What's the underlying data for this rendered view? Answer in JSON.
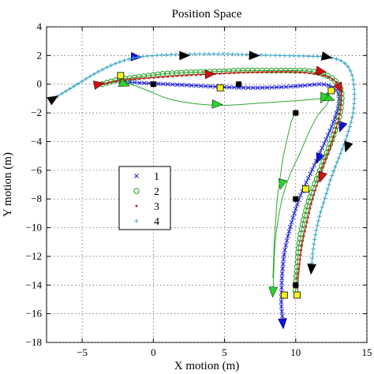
{
  "chart_data": {
    "type": "line",
    "title": "Position Space",
    "xlabel": "X motion (m)",
    "ylabel": "Y motion (m)",
    "xlim": [
      -7.5,
      15
    ],
    "ylim": [
      -18,
      4
    ],
    "xticks": [
      -5,
      0,
      5,
      10,
      15
    ],
    "yticks": [
      4,
      2,
      0,
      -2,
      -4,
      -6,
      -8,
      -10,
      -12,
      -14,
      -16,
      -18
    ],
    "grid": "dotted",
    "legend_position": "left-middle",
    "series": [
      {
        "name": "1",
        "marker": "x",
        "color": "#1f1fd6",
        "points": [
          [
            -2.3,
            0.2
          ],
          [
            -1,
            0.1
          ],
          [
            1,
            0
          ],
          [
            3,
            -0.1
          ],
          [
            5,
            -0.2
          ],
          [
            7,
            -0.25
          ],
          [
            9,
            -0.2
          ],
          [
            10.5,
            -0.1
          ],
          [
            11.8,
            0
          ],
          [
            12.6,
            -0.2
          ],
          [
            13,
            -0.7
          ],
          [
            13,
            -1.5
          ],
          [
            12.7,
            -2.5
          ],
          [
            12.2,
            -3.7
          ],
          [
            11.6,
            -5
          ],
          [
            11,
            -6.3
          ],
          [
            10.4,
            -7.6
          ],
          [
            9.9,
            -9
          ],
          [
            9.5,
            -10.4
          ],
          [
            9.2,
            -11.8
          ],
          [
            9.05,
            -13.2
          ],
          [
            9,
            -14.6
          ],
          [
            9,
            -15.5
          ],
          [
            9.1,
            -16.6
          ]
        ],
        "arrows": [
          [
            -1.2,
            1.9
          ],
          [
            13.2,
            -3.0
          ],
          [
            11.6,
            -5.2
          ],
          [
            9.1,
            -16.7
          ]
        ]
      },
      {
        "name": "2",
        "marker": "o",
        "color": "#1e9e1e",
        "points": [
          [
            -3.6,
            0
          ],
          [
            -2.5,
            0.3
          ],
          [
            -1,
            0.5
          ],
          [
            0.5,
            0.7
          ],
          [
            2,
            0.8
          ],
          [
            3.5,
            0.85
          ],
          [
            5,
            0.9
          ],
          [
            6.5,
            0.95
          ],
          [
            8,
            0.95
          ],
          [
            9.5,
            0.95
          ],
          [
            11,
            0.9
          ],
          [
            12.2,
            0.6
          ],
          [
            12.9,
            0.1
          ],
          [
            13.2,
            -0.5
          ],
          [
            13.2,
            -1.4
          ],
          [
            13,
            -2.5
          ],
          [
            12.6,
            -3.7
          ],
          [
            12.1,
            -5
          ],
          [
            11.6,
            -6.3
          ],
          [
            11.1,
            -7.6
          ],
          [
            10.7,
            -8.9
          ],
          [
            10.4,
            -10.2
          ],
          [
            10.2,
            -11.5
          ],
          [
            10.1,
            -12.8
          ],
          [
            10,
            -14
          ],
          [
            10,
            -14.6
          ]
        ]
      },
      {
        "name": "3",
        "marker": ".",
        "color": "#cc1f1f",
        "points": [
          [
            -3.6,
            0
          ],
          [
            -2,
            0.3
          ],
          [
            0,
            0.45
          ],
          [
            2,
            0.6
          ],
          [
            4,
            0.7
          ],
          [
            6,
            0.8
          ],
          [
            8,
            0.85
          ],
          [
            10,
            0.85
          ],
          [
            11.5,
            0.7
          ],
          [
            12.5,
            0.4
          ],
          [
            13.1,
            -0.2
          ],
          [
            13.2,
            -1
          ],
          [
            13.1,
            -2
          ],
          [
            12.8,
            -3.2
          ],
          [
            12.4,
            -4.5
          ],
          [
            11.9,
            -5.8
          ],
          [
            11.5,
            -7
          ],
          [
            11.1,
            -8.3
          ],
          [
            10.8,
            -9.6
          ],
          [
            10.5,
            -10.9
          ],
          [
            10.3,
            -12.2
          ],
          [
            10.15,
            -13.4
          ],
          [
            10.1,
            -14.3
          ]
        ],
        "arrows": [
          [
            -3.8,
            0
          ],
          [
            4.0,
            0.7
          ],
          [
            11.8,
            0.9
          ],
          [
            13.1,
            -0.3
          ],
          [
            11.8,
            -6.5
          ]
        ]
      },
      {
        "name": "4",
        "marker": "+",
        "color": "#3fa8c8",
        "points": [
          [
            -7,
            -1
          ],
          [
            -5.5,
            -0.1
          ],
          [
            -4,
            0.8
          ],
          [
            -2.5,
            1.5
          ],
          [
            -1,
            1.9
          ],
          [
            1,
            2.05
          ],
          [
            3,
            2.1
          ],
          [
            5,
            2.1
          ],
          [
            7,
            2.05
          ],
          [
            9,
            2.0
          ],
          [
            11,
            1.95
          ],
          [
            12.5,
            1.85
          ],
          [
            13.4,
            1.5
          ],
          [
            13.9,
            0.8
          ],
          [
            14.1,
            -0.2
          ],
          [
            14.1,
            -1.4
          ],
          [
            13.9,
            -2.6
          ],
          [
            13.5,
            -3.9
          ],
          [
            13,
            -5.2
          ],
          [
            12.5,
            -6.5
          ],
          [
            12.1,
            -7.8
          ],
          [
            11.7,
            -9.1
          ],
          [
            11.4,
            -10.4
          ],
          [
            11.2,
            -11.7
          ],
          [
            11.1,
            -13
          ]
        ],
        "arrows": [
          [
            -7,
            -1
          ],
          [
            2.2,
            2.0
          ],
          [
            7.1,
            2.0
          ],
          [
            12.2,
            1.9
          ],
          [
            13.6,
            -4.4
          ],
          [
            11.1,
            -12.9
          ]
        ]
      },
      {
        "name": "",
        "marker": "none",
        "color": "#2ea82e",
        "points": [
          [
            -2,
            0.15
          ],
          [
            -0.5,
            -0.4
          ],
          [
            1,
            -1
          ],
          [
            2.5,
            -1.3
          ],
          [
            4,
            -1.45
          ],
          [
            5.5,
            -1.45
          ],
          [
            7,
            -1.35
          ],
          [
            8.5,
            -1.25
          ],
          [
            10,
            -1.15
          ],
          [
            11.3,
            -1.05
          ],
          [
            12.2,
            -1
          ],
          [
            12.2,
            -1.4
          ],
          [
            11.6,
            -2.1
          ],
          [
            11,
            -3.2
          ],
          [
            10.3,
            -4.8
          ],
          [
            9.6,
            -6.3
          ],
          [
            9.1,
            -7.8
          ],
          [
            8.8,
            -9.2
          ],
          [
            8.6,
            -10.6
          ],
          [
            8.5,
            -12
          ],
          [
            8.45,
            -13.3
          ],
          [
            8.4,
            -14.4
          ]
        ],
        "arrows": [
          [
            -2,
            0
          ],
          [
            4.5,
            -1.4
          ],
          [
            12.4,
            -1.0
          ],
          [
            9.0,
            -7.0
          ],
          [
            8.4,
            -14.5
          ]
        ]
      },
      {
        "name": "",
        "marker": "none",
        "color": "#2ea82e",
        "points": [
          [
            10,
            -1.9
          ],
          [
            9.7,
            -2.6
          ],
          [
            9.4,
            -3.8
          ],
          [
            9.1,
            -5.2
          ],
          [
            8.9,
            -6.6
          ],
          [
            8.7,
            -8
          ],
          [
            8.6,
            -9.4
          ],
          [
            8.5,
            -10.8
          ],
          [
            8.45,
            -12.2
          ],
          [
            8.4,
            -13.5
          ]
        ],
        "arrows": [
          [
            11.9,
            -1.0
          ]
        ]
      }
    ],
    "markers_yellow": [
      [
        -2.3,
        0.6
      ],
      [
        4.7,
        -0.25
      ],
      [
        12.5,
        -0.45
      ],
      [
        10.7,
        -7.3
      ],
      [
        9.2,
        -14.7
      ],
      [
        10.1,
        -14.7
      ]
    ],
    "markers_black": [
      [
        0,
        0
      ],
      [
        6,
        0
      ],
      [
        10,
        -2
      ],
      [
        10,
        -8
      ],
      [
        10,
        -14
      ]
    ]
  }
}
